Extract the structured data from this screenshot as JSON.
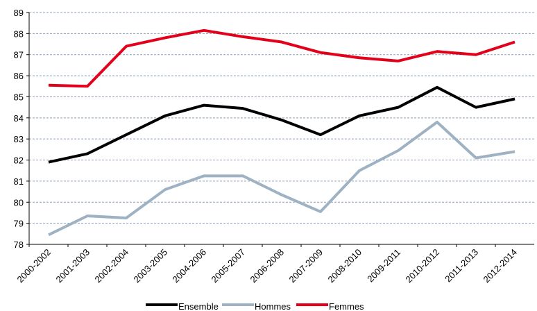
{
  "chart_data": {
    "type": "line",
    "categories": [
      "2000-2002",
      "2001-2003",
      "2002-2004",
      "2003-2005",
      "2004-2006",
      "2005-2007",
      "2006-2008",
      "2007-2009",
      "2008-2010",
      "2009-2011",
      "2010-2012",
      "2011-2013",
      "2012-2014"
    ],
    "series": [
      {
        "name": "Ensemble",
        "color": "#000000",
        "values": [
          81.9,
          82.3,
          83.2,
          84.1,
          84.6,
          84.45,
          83.9,
          83.2,
          84.1,
          84.5,
          85.45,
          84.5,
          84.9
        ]
      },
      {
        "name": "Hommes",
        "color": "#9fb2c3",
        "values": [
          78.45,
          79.35,
          79.25,
          80.6,
          81.25,
          81.25,
          80.35,
          79.55,
          81.5,
          82.45,
          83.8,
          82.1,
          82.4
        ]
      },
      {
        "name": "Femmes",
        "color": "#e2001a",
        "values": [
          85.55,
          85.5,
          87.4,
          87.8,
          88.15,
          87.85,
          87.6,
          87.1,
          86.85,
          86.7,
          87.15,
          87.0,
          87.6
        ]
      }
    ],
    "ylim": [
      78,
      89
    ],
    "yticks": [
      78,
      79,
      80,
      81,
      82,
      83,
      84,
      85,
      86,
      87,
      88,
      89
    ],
    "grid": true
  }
}
